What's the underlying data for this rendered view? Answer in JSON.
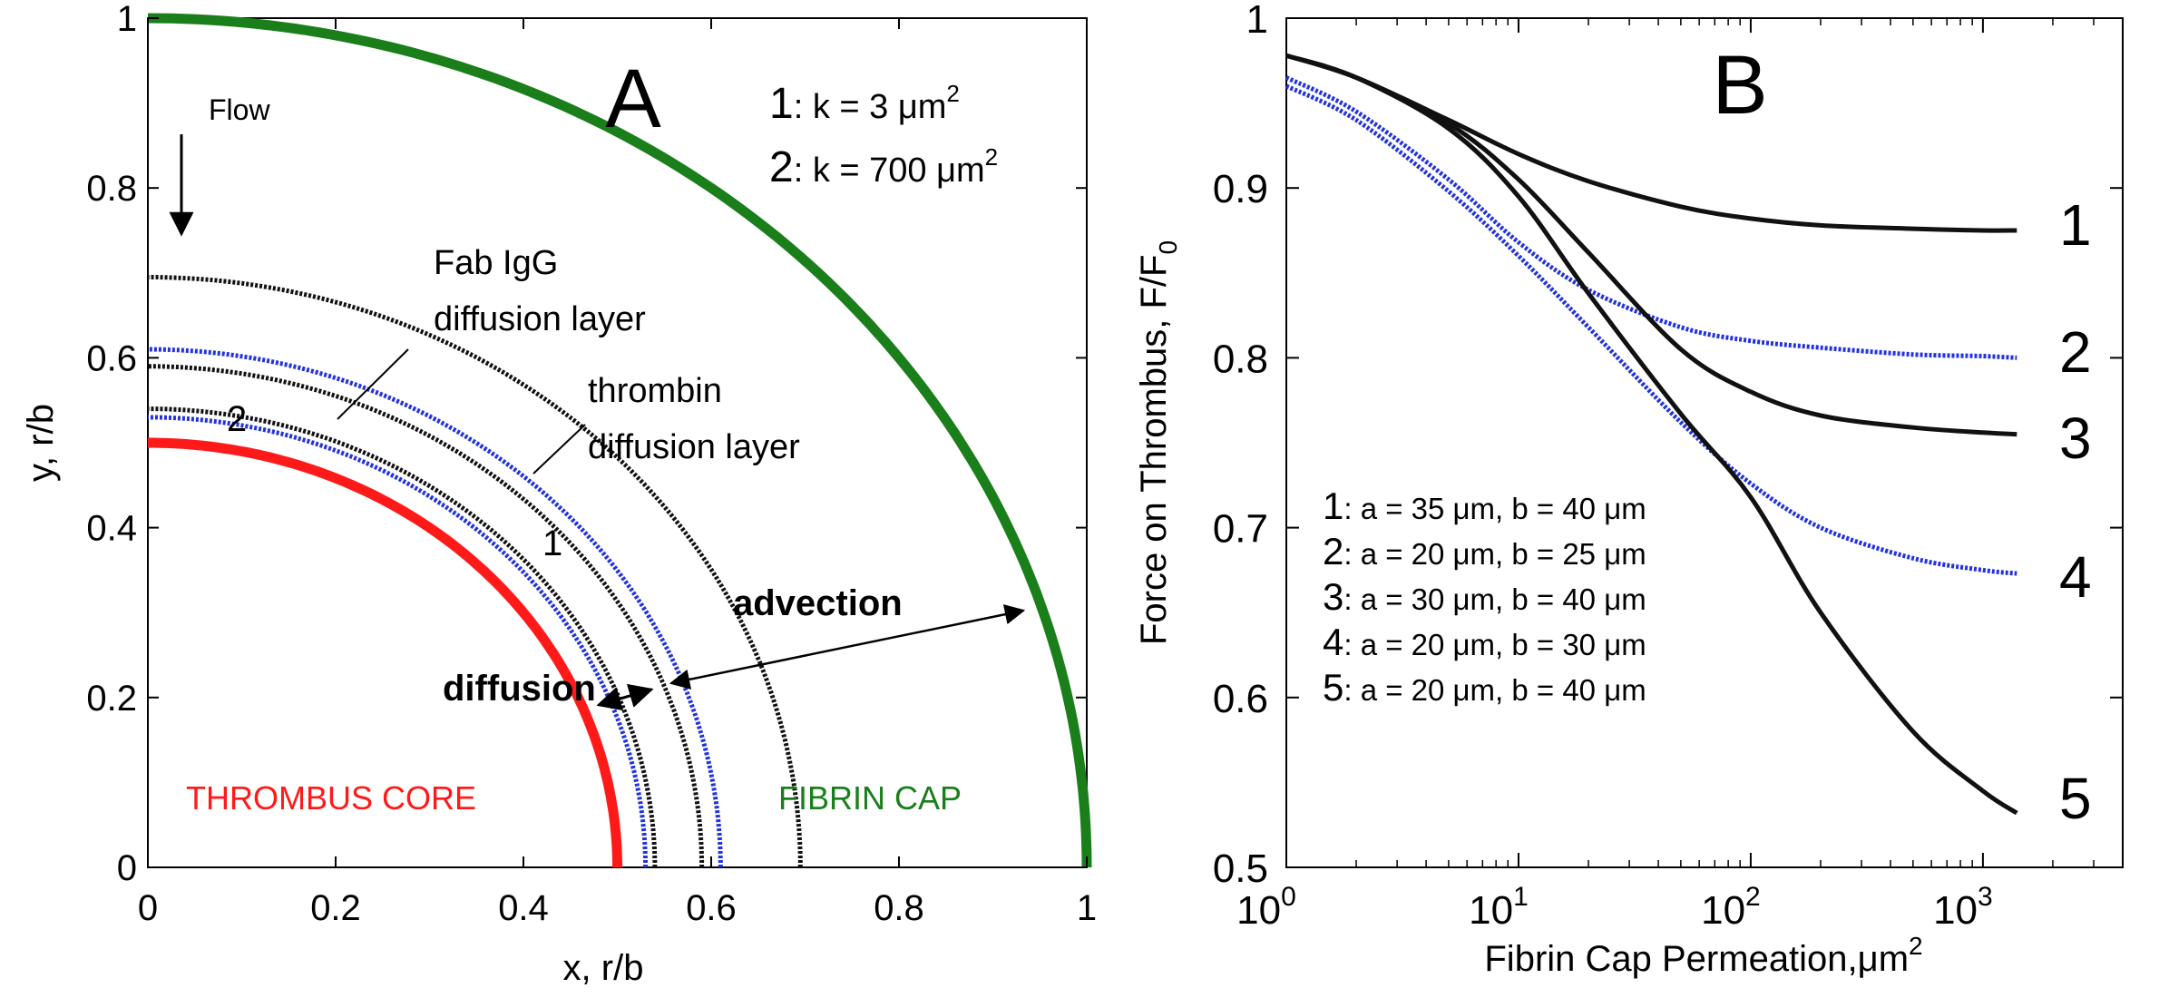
{
  "chart_data": [
    {
      "panel": "A",
      "type": "line",
      "panel_label": "A",
      "xlabel": "x, r/b",
      "ylabel": "y, r/b",
      "xlim": [
        0,
        1
      ],
      "ylim": [
        0,
        1
      ],
      "xticks": [
        0,
        0.2,
        0.4,
        0.6,
        0.8,
        1
      ],
      "xtick_labels": [
        "0",
        "0.2",
        "0.4",
        "0.6",
        "0.8",
        "1"
      ],
      "yticks": [
        0,
        0.2,
        0.4,
        0.6,
        0.8,
        1
      ],
      "ytick_labels": [
        "0",
        "0.2",
        "0.4",
        "0.6",
        "0.8",
        "1"
      ],
      "grid": false,
      "legend": {
        "items": [
          {
            "num": "1",
            "text": ": k = 3 μm",
            "sup": "2"
          },
          {
            "num": "2",
            "text": ": k = 700 μm",
            "sup": "2"
          }
        ]
      },
      "series": [
        {
          "name": "FIBRIN CAP",
          "radius": 1.0,
          "color": "#1a7f1a",
          "style": "solid"
        },
        {
          "name": "THROMBUS CORE",
          "radius": 0.5,
          "color": "#ff1a1a",
          "style": "solid"
        },
        {
          "radius": 0.59,
          "color": "#111111",
          "style": "dotted"
        },
        {
          "radius": 0.695,
          "color": "#111111",
          "style": "dotted"
        },
        {
          "radius": 0.54,
          "color": "#111111",
          "style": "dotted"
        },
        {
          "radius": 0.61,
          "color": "#2233dd",
          "style": "dotted"
        },
        {
          "radius": 0.53,
          "color": "#2233dd",
          "style": "dotted"
        }
      ],
      "annotations": {
        "flow": "Flow",
        "fab_line1": "Fab IgG",
        "fab_line2": "diffusion  layer",
        "thrombin_line1": "thrombin",
        "thrombin_line2": "diffusion layer",
        "advection": "advection",
        "diffusion": "diffusion",
        "curve1": "1",
        "curve2": "2",
        "core": "THROMBUS CORE",
        "cap": "FIBRIN CAP"
      }
    },
    {
      "panel": "B",
      "type": "line",
      "panel_label": "B",
      "xlabel": "Fibrin Cap Permeation,",
      "xlabel_unit": "μm",
      "xlabel_unit_sup": "2",
      "ylabel": "Force on Thrombus, F/F",
      "ylabel_sub": "0",
      "xscale": "log",
      "xlim": [
        1,
        4000
      ],
      "ylim": [
        0.5,
        1.0
      ],
      "xticks": [
        1,
        10,
        100,
        1000
      ],
      "xtick_base": "10",
      "xtick_exponents": [
        "0",
        "1",
        "2",
        "3"
      ],
      "yticks": [
        0.5,
        0.6,
        0.7,
        0.8,
        0.9,
        1.0
      ],
      "ytick_labels": [
        "0.5",
        "0.6",
        "0.7",
        "0.8",
        "0.9",
        "1"
      ],
      "grid": false,
      "legend_position": "center-left",
      "legend": [
        {
          "num": "1",
          "text": ": a = 35 μm, b = 40 μm"
        },
        {
          "num": "2",
          "text": ": a = 20 μm, b = 25 μm"
        },
        {
          "num": "3",
          "text": ": a = 30 μm, b = 40 μm"
        },
        {
          "num": "4",
          "text": ": a = 20 μm, b = 30 μm"
        },
        {
          "num": "5",
          "text": ": a = 20 μm, b = 40 μm"
        }
      ],
      "series": [
        {
          "label": "1",
          "color": "#111111",
          "style": "solid",
          "x": [
            1,
            2,
            5,
            10,
            20,
            50,
            100,
            200,
            500,
            1000,
            1400
          ],
          "y": [
            0.978,
            0.965,
            0.94,
            0.92,
            0.904,
            0.889,
            0.882,
            0.878,
            0.876,
            0.875,
            0.875
          ]
        },
        {
          "label": "2",
          "color": "#2233dd",
          "style": "dotted",
          "x": [
            1,
            2,
            5,
            10,
            20,
            50,
            100,
            200,
            500,
            1000,
            1400
          ],
          "y": [
            0.965,
            0.945,
            0.905,
            0.868,
            0.84,
            0.818,
            0.81,
            0.806,
            0.802,
            0.801,
            0.8
          ]
        },
        {
          "label": "3",
          "color": "#111111",
          "style": "solid",
          "x": [
            1,
            2,
            5,
            10,
            20,
            50,
            100,
            200,
            500,
            1000,
            1400
          ],
          "y": [
            0.978,
            0.965,
            0.938,
            0.905,
            0.862,
            0.805,
            0.78,
            0.766,
            0.759,
            0.756,
            0.755
          ]
        },
        {
          "label": "4",
          "color": "#2233dd",
          "style": "dotted",
          "x": [
            1,
            2,
            5,
            10,
            20,
            50,
            100,
            200,
            500,
            1000,
            1400
          ],
          "y": [
            0.96,
            0.94,
            0.898,
            0.86,
            0.818,
            0.762,
            0.726,
            0.7,
            0.682,
            0.675,
            0.673
          ]
        },
        {
          "label": "5",
          "color": "#111111",
          "style": "solid",
          "x": [
            1,
            2,
            5,
            10,
            20,
            50,
            100,
            200,
            500,
            1000,
            1400
          ],
          "y": [
            0.978,
            0.965,
            0.935,
            0.895,
            0.838,
            0.767,
            0.718,
            0.65,
            0.58,
            0.545,
            0.532
          ]
        }
      ]
    }
  ]
}
